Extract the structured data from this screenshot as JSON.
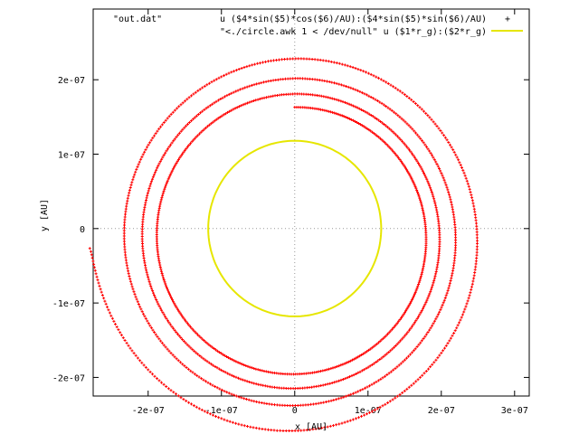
{
  "chart_data": {
    "type": "scatter",
    "title": "",
    "xlabel": "x [AU]",
    "ylabel": "y [AU]",
    "xlim": [
      -2.75e-07,
      3.2e-07
    ],
    "ylim": [
      -2.25e-07,
      2.95e-07
    ],
    "x_ticks": [
      {
        "value": -2e-07,
        "label": "-2e-07"
      },
      {
        "value": -1e-07,
        "label": "-1e-07"
      },
      {
        "value": 0,
        "label": "0"
      },
      {
        "value": 1e-07,
        "label": "1e-07"
      },
      {
        "value": 2e-07,
        "label": "2e-07"
      },
      {
        "value": 3e-07,
        "label": "3e-07"
      }
    ],
    "y_ticks": [
      {
        "value": -2e-07,
        "label": "-2e-07"
      },
      {
        "value": -1e-07,
        "label": "-1e-07"
      },
      {
        "value": 0,
        "label": "0"
      },
      {
        "value": 1e-07,
        "label": "1e-07"
      },
      {
        "value": 2e-07,
        "label": "2e-07"
      }
    ],
    "zero_axes": true,
    "legend_position": "top-right",
    "legend_file": "\"out.dat\"",
    "series": [
      {
        "name": "u ($4*sin($5)*cos($6)/AU):($4*sin($5)*sin($6)/AU)",
        "style": "points",
        "marker": "+",
        "color": "#ff0000",
        "spiral": {
          "r_start": 2.8e-07,
          "angle_start_deg": 183,
          "r_end": 1.75e-07,
          "angle_end_deg": 1530,
          "center_x": 0,
          "center_y": -1.2e-08
        }
      },
      {
        "name": "\"<./circle.awk 1 < /dev/null\" u ($1*r_g):($2*r_g)",
        "style": "line",
        "color": "#e6e600",
        "circle": {
          "center_x": 0,
          "center_y": 0,
          "radius": 1.18e-07
        }
      }
    ]
  }
}
